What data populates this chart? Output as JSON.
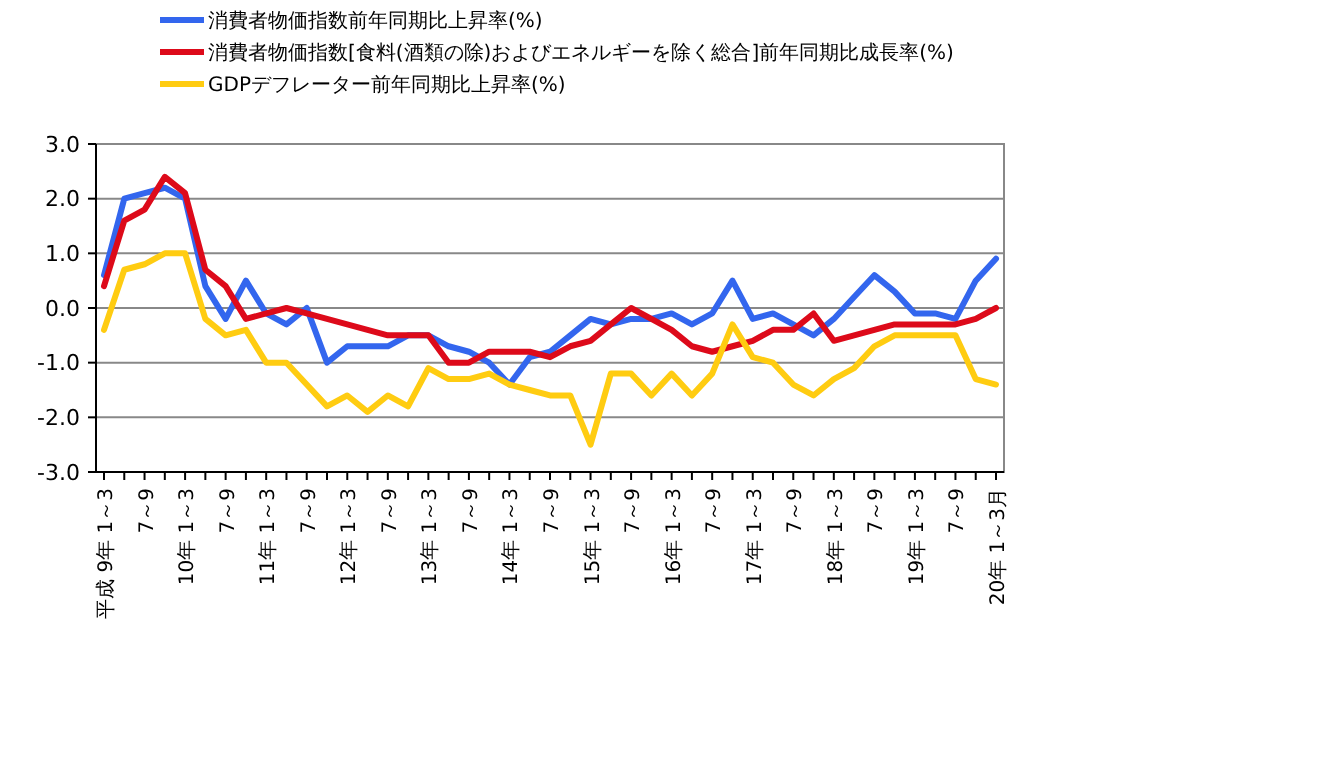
{
  "chart_data": {
    "type": "line",
    "categories": [
      "平成 9年 1～3",
      null,
      "7～9",
      null,
      "10年 1～3",
      null,
      "7～9",
      null,
      "11年 1～3",
      null,
      "7～9",
      null,
      "12年 1～3",
      null,
      "7～9",
      null,
      "13年 1～3",
      null,
      "7～9",
      null,
      "14年 1～3",
      null,
      "7～9",
      null,
      "15年 1～3",
      null,
      "7～9",
      null,
      "16年 1～3",
      null,
      "7～9",
      null,
      "17年 1～3",
      null,
      "7～9",
      null,
      "18年 1～3",
      null,
      "7～9",
      null,
      "19年 1～3",
      null,
      "7～9",
      null,
      "20年 1～3月"
    ],
    "series": [
      {
        "name": "消費者物価指数前年同期比上昇率(%)",
        "color": "#3366ee",
        "values": [
          0.6,
          2.0,
          2.1,
          2.2,
          2.0,
          0.4,
          -0.2,
          0.5,
          -0.1,
          -0.3,
          0.0,
          -1.0,
          -0.7,
          -0.7,
          -0.7,
          -0.5,
          -0.5,
          -0.7,
          -0.8,
          -1.0,
          -1.4,
          -0.9,
          -0.8,
          -0.5,
          -0.2,
          -0.3,
          -0.2,
          -0.2,
          -0.1,
          -0.3,
          -0.1,
          0.5,
          -0.2,
          -0.1,
          -0.3,
          -0.5,
          -0.2,
          0.2,
          0.6,
          0.3,
          -0.1,
          -0.1,
          -0.2,
          0.5,
          0.9
        ]
      },
      {
        "name": "消費者物価指数[食料(酒類の除)およびエネルギーを除く総合]前年同期比成長率(%)",
        "color": "#dd0a1a",
        "values": [
          0.4,
          1.6,
          1.8,
          2.4,
          2.1,
          0.7,
          0.4,
          -0.2,
          -0.1,
          0.0,
          -0.1,
          -0.2,
          -0.3,
          -0.4,
          -0.5,
          -0.5,
          -0.5,
          -1.0,
          -1.0,
          -0.8,
          -0.8,
          -0.8,
          -0.9,
          -0.7,
          -0.6,
          -0.3,
          0.0,
          -0.2,
          -0.4,
          -0.7,
          -0.8,
          -0.7,
          -0.6,
          -0.4,
          -0.4,
          -0.1,
          -0.6,
          -0.5,
          -0.4,
          -0.3,
          -0.3,
          -0.3,
          -0.3,
          -0.2,
          0.0
        ]
      },
      {
        "name": "GDPデフレーター前年同期比上昇率(%)",
        "color": "#ffcc11",
        "values": [
          -0.4,
          0.7,
          0.8,
          1.0,
          1.0,
          -0.2,
          -0.5,
          -0.4,
          -1.0,
          -1.0,
          -1.4,
          -1.8,
          -1.6,
          -1.9,
          -1.6,
          -1.8,
          -1.1,
          -1.3,
          -1.3,
          -1.2,
          -1.4,
          -1.5,
          -1.6,
          -1.6,
          -2.5,
          -1.2,
          -1.2,
          -1.6,
          -1.2,
          -1.6,
          -1.2,
          -0.3,
          -0.9,
          -1.0,
          -1.4,
          -1.6,
          -1.3,
          -1.1,
          -0.7,
          -0.5,
          -0.5,
          -0.5,
          -0.5,
          -1.3,
          -1.4
        ]
      }
    ],
    "ylim": [
      -3,
      3
    ],
    "yticks": [
      {
        "value": -3,
        "label": "-3.0"
      },
      {
        "value": -2,
        "label": "-2.0"
      },
      {
        "value": -1,
        "label": "-1.0"
      },
      {
        "value": 0,
        "label": "0.0"
      },
      {
        "value": 1,
        "label": "1.0"
      },
      {
        "value": 2,
        "label": "2.0"
      },
      {
        "value": 3,
        "label": "3.0"
      }
    ],
    "grid": "y",
    "legend": "top left",
    "marker": "none",
    "line_style": "solid"
  }
}
